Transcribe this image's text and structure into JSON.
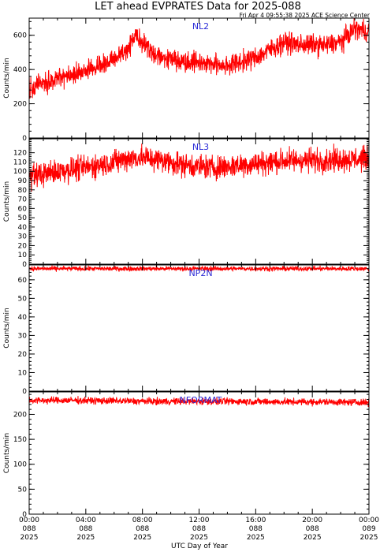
{
  "figure": {
    "title": "LET ahead EVPRATES Data for 2025-088",
    "timestamp": "Fri Apr  4 09:55:38 2025 ACE Science Center",
    "xlabel": "UTC Day of Year",
    "colors": {
      "trace": "#ff0000",
      "panel_label": "#2b2bd6",
      "axes": "#000000"
    }
  },
  "chart_data": [
    {
      "type": "line",
      "panel_label": "NL2",
      "ylabel": "Counts/min",
      "ylim": [
        0,
        700
      ],
      "yticks": [
        0,
        200,
        400,
        600
      ],
      "xlim": [
        0,
        24
      ],
      "x": [
        0,
        1,
        2,
        3,
        4,
        5,
        6,
        7,
        7.5,
        8,
        9,
        10,
        11,
        12,
        13,
        14,
        15,
        16,
        17,
        18,
        19,
        20,
        21,
        22,
        23,
        24
      ],
      "series": [
        {
          "values": [
            290,
            320,
            345,
            370,
            395,
            415,
            460,
            520,
            615,
            560,
            480,
            460,
            450,
            445,
            430,
            425,
            445,
            470,
            515,
            560,
            545,
            545,
            540,
            560,
            640,
            620
          ]
        }
      ]
    },
    {
      "type": "line",
      "panel_label": "NL3",
      "ylabel": "Counts/min",
      "ylim": [
        0,
        135
      ],
      "yticks": [
        0,
        10,
        20,
        30,
        40,
        50,
        60,
        70,
        80,
        90,
        100,
        110,
        120
      ],
      "xlim": [
        0,
        24
      ],
      "x": [
        0,
        1,
        2,
        3,
        4,
        5,
        6,
        7,
        8,
        9,
        10,
        11,
        12,
        13,
        14,
        15,
        16,
        17,
        18,
        19,
        20,
        21,
        22,
        23,
        24
      ],
      "series": [
        {
          "values": [
            95,
            97,
            100,
            102,
            104,
            107,
            110,
            114,
            115,
            113,
            110,
            107,
            105,
            104,
            105,
            107,
            108,
            110,
            111,
            112,
            112,
            112,
            113,
            113,
            114
          ]
        }
      ]
    },
    {
      "type": "line",
      "panel_label": "NP2N",
      "ylabel": "Counts/min",
      "ylim": [
        0,
        68
      ],
      "yticks": [
        0,
        10,
        20,
        30,
        40,
        50,
        60
      ],
      "xlim": [
        0,
        24
      ],
      "x": [
        0,
        6,
        12,
        18,
        24
      ],
      "series": [
        {
          "values": [
            66,
            66,
            66,
            66,
            66
          ]
        }
      ]
    },
    {
      "type": "line",
      "panel_label": "NFORMAT",
      "ylabel": "Counts/min",
      "ylim": [
        0,
        245
      ],
      "yticks": [
        0,
        50,
        100,
        150,
        200
      ],
      "xlim": [
        0,
        24
      ],
      "x": [
        0,
        3,
        6,
        9,
        12,
        15,
        18,
        21,
        24
      ],
      "series": [
        {
          "values": [
            228,
            228,
            227,
            226,
            226,
            226,
            225,
            225,
            224
          ]
        }
      ]
    }
  ],
  "x_axis": {
    "ticks": [
      {
        "x": 0,
        "time": "00:00",
        "doy": "088",
        "year": "2025"
      },
      {
        "x": 4,
        "time": "04:00",
        "doy": "088",
        "year": "2025"
      },
      {
        "x": 8,
        "time": "08:00",
        "doy": "088",
        "year": "2025"
      },
      {
        "x": 12,
        "time": "12:00",
        "doy": "088",
        "year": "2025"
      },
      {
        "x": 16,
        "time": "16:00",
        "doy": "088",
        "year": "2025"
      },
      {
        "x": 20,
        "time": "20:00",
        "doy": "088",
        "year": "2025"
      },
      {
        "x": 24,
        "time": "00:00",
        "doy": "089",
        "year": "2025"
      }
    ]
  }
}
